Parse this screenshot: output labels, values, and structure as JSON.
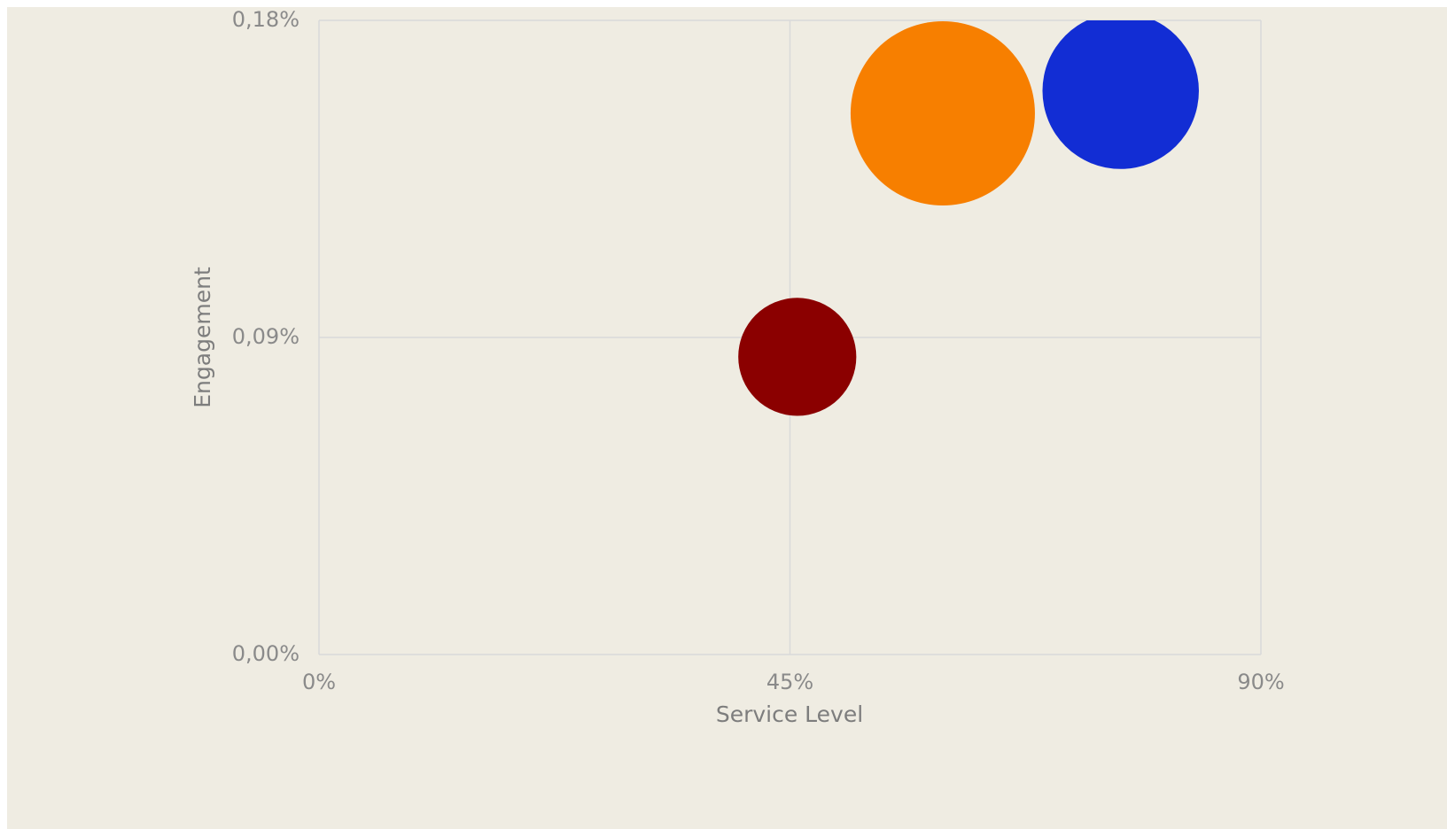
{
  "chart_data": {
    "type": "bubble",
    "x_label": "Service Level",
    "y_label": "Engagement",
    "x": [
      45.7,
      59.6,
      76.6
    ],
    "y": [
      0.0845,
      0.1536,
      0.16
    ],
    "sizes": [
      41,
      100,
      72
    ],
    "colors": [
      "#8b0000",
      "#f77f00",
      "#122dd4"
    ],
    "xlim": [
      0,
      90
    ],
    "xticks": [
      {
        "value": 0,
        "label": "0%"
      },
      {
        "value": 45,
        "label": "45%"
      },
      {
        "value": 90,
        "label": "90%"
      }
    ],
    "ylim": [
      0,
      0.18
    ],
    "yticks": [
      {
        "value": 0,
        "label": "0,00%"
      },
      {
        "value": 0.09,
        "label": "0,09%"
      },
      {
        "value": 0.18,
        "label": "0,18%"
      }
    ],
    "grid": true
  }
}
